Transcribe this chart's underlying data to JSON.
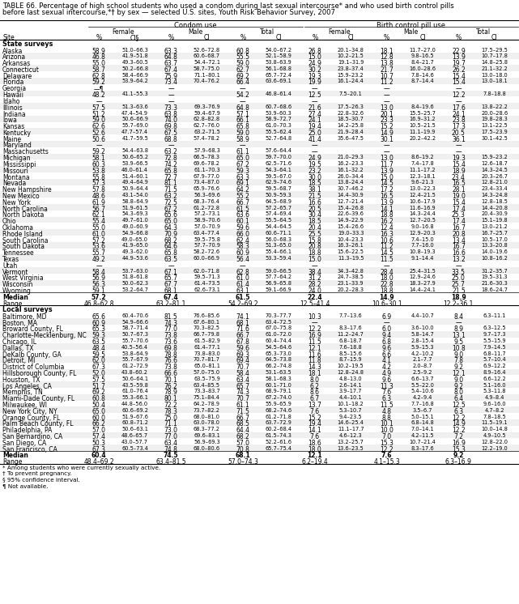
{
  "title_line1": "TABLE 66. Percentage of high school students who used a condom during last sexual intercourse* and who used birth control pills",
  "title_line2": "before last sexual intercourse,*† by sex — selected U.S. sites, Youth Risk Behavior Survey, 2007",
  "col_group1": "Condom use",
  "col_group2": "Birth control pill use",
  "sub_headers": [
    "Female",
    "Male",
    "Total",
    "Female",
    "Male",
    "Total"
  ],
  "col_headers": [
    "%",
    "CI§",
    "%",
    "CI",
    "%",
    "CI",
    "%",
    "CI",
    "%",
    "CI",
    "%",
    "CI"
  ],
  "section1_header": "State surveys",
  "rows_state": [
    [
      "Alaska",
      "58.9",
      "51.0–66.3",
      "63.3",
      "52.6–72.8",
      "60.8",
      "54.0–67.2",
      "26.8",
      "20.1–34.8",
      "18.1",
      "11.7–27.0",
      "22.9",
      "17.5–29.5"
    ],
    [
      "Arizona",
      "46.8",
      "41.9–51.8",
      "64.8",
      "60.6–68.7",
      "55.5",
      "52.1–58.9",
      "15.0",
      "10.2–21.5",
      "12.8",
      "9.8–16.5",
      "13.9",
      "10.7–17.8"
    ],
    [
      "Arkansas",
      "55.0",
      "49.3–60.5",
      "63.7",
      "54.4–72.1",
      "59.0",
      "53.8–63.9",
      "24.9",
      "19.1–31.9",
      "13.8",
      "8.4–21.7",
      "19.7",
      "14.8–25.8"
    ],
    [
      "Connecticut",
      "58.7",
      "50.2–66.8",
      "67.4",
      "58.7–75.0",
      "62.7",
      "56.1–68.8",
      "30.2",
      "23.8–37.4",
      "21.7",
      "16.0–28.6",
      "26.2",
      "21.1–32.2"
    ],
    [
      "Delaware",
      "62.8",
      "58.4–66.9",
      "75.9",
      "71.1–80.1",
      "69.2",
      "65.7–72.4",
      "19.3",
      "15.9–23.2",
      "10.7",
      "7.8–14.6",
      "15.4",
      "13.0–18.0"
    ],
    [
      "Florida",
      "59.2",
      "53.9–64.2",
      "73.4",
      "70.4–76.2",
      "66.4",
      "63.6–69.1",
      "19.9",
      "16.1–24.4",
      "11.2",
      "8.7–14.4",
      "15.4",
      "13.0–18.1"
    ],
    [
      "Georgia",
      "—¶",
      "",
      "—",
      "",
      "—",
      "",
      "—",
      "",
      "—",
      "",
      "—",
      ""
    ],
    [
      "Hawaii",
      "48.2",
      "41.1–55.3",
      "—",
      "",
      "54.2",
      "46.8–61.4",
      "12.5",
      "7.5–20.1",
      "—",
      "",
      "12.2",
      "7.8–18.8"
    ],
    [
      "Idaho",
      "—",
      "",
      "—",
      "",
      "—",
      "",
      "—",
      "",
      "—",
      "",
      "—",
      ""
    ],
    [
      "Illinois",
      "57.5",
      "51.3–63.6",
      "73.3",
      "69.3–76.9",
      "64.8",
      "60.7–68.6",
      "21.6",
      "17.5–26.3",
      "13.0",
      "8.4–19.6",
      "17.6",
      "13.8–22.2"
    ],
    [
      "Indiana",
      "51.2",
      "47.4–54.9",
      "63.8",
      "59.4–67.9",
      "57.1",
      "53.9–60.3",
      "27.4",
      "22.8–32.6",
      "20.1",
      "15.5–25.7",
      "24.1",
      "20.0–28.6"
    ],
    [
      "Iowa",
      "59.0",
      "50.6–66.9",
      "74.0",
      "62.8–82.8",
      "66.1",
      "58.9–72.7",
      "24.1",
      "18.5–30.7",
      "23.3",
      "16.9–31.2",
      "23.8",
      "19.8–28.3"
    ],
    [
      "Kansas",
      "62.6",
      "55.7–69.0",
      "69.8",
      "62.7–76.0",
      "65.8",
      "61.0–70.3",
      "19.4",
      "14.2–25.8",
      "15.2",
      "10.5–21.5",
      "17.3",
      "13.1–22.5"
    ],
    [
      "Kentucky",
      "52.6",
      "47.7–57.4",
      "67.5",
      "63.2–71.5",
      "59.0",
      "55.5–62.4",
      "25.0",
      "21.9–28.4",
      "14.9",
      "11.1–19.9",
      "20.5",
      "17.5–23.9"
    ],
    [
      "Maine",
      "50.6",
      "41.7–59.5",
      "68.8",
      "57.4–78.2",
      "58.9",
      "52.7–64.8",
      "41.4",
      "35.6–47.5",
      "30.1",
      "20.2–42.2",
      "36.1",
      "30.1–42.5"
    ],
    [
      "Maryland",
      "—",
      "",
      "—",
      "",
      "—",
      "",
      "—",
      "",
      "—",
      "",
      "—",
      ""
    ],
    [
      "Massachusetts",
      "59.2",
      "54.4–63.8",
      "63.2",
      "57.9–68.3",
      "61.1",
      "57.6–64.4",
      "—",
      "",
      "—",
      "",
      "—",
      ""
    ],
    [
      "Michigan",
      "58.1",
      "50.6–65.2",
      "72.8",
      "66.5–78.3",
      "65.0",
      "59.7–70.0",
      "24.9",
      "21.0–29.3",
      "13.0",
      "8.6–19.2",
      "19.3",
      "15.9–23.2"
    ],
    [
      "Mississippi",
      "60.3",
      "53.9–66.5",
      "74.2",
      "69.6–78.2",
      "67.2",
      "62.5–71.6",
      "19.5",
      "16.2–23.3",
      "11.7",
      "7.4–17.8",
      "15.4",
      "12.6–18.7"
    ],
    [
      "Missouri",
      "53.8",
      "46.0–61.4",
      "65.8",
      "61.1–70.3",
      "59.3",
      "54.3–64.1",
      "23.2",
      "16.1–32.2",
      "13.9",
      "11.1–17.2",
      "18.9",
      "14.3–24.5"
    ],
    [
      "Montana",
      "55.8",
      "51.4–60.1",
      "72.7",
      "67.9–77.0",
      "63.3",
      "59.5–67.0",
      "30.0",
      "26.0–34.4",
      "15.0",
      "12.3–18.1",
      "23.4",
      "20.3–26.7"
    ],
    [
      "Nevada",
      "57.3",
      "49.4–64.9",
      "81.1",
      "73.4–87.0",
      "69.1",
      "62.9–74.6",
      "18.5",
      "13.8–24.4",
      "14.5",
      "9.6–21.3",
      "16.5",
      "12.8–21.0"
    ],
    [
      "New Hampshire",
      "57.8",
      "50.9–64.4",
      "71.5",
      "65.9–76.6",
      "64.2",
      "59.5–68.7",
      "38.1",
      "30.7–46.2",
      "17.2",
      "13.0–22.3",
      "28.1",
      "23.4–33.4"
    ],
    [
      "New Mexico",
      "48.6",
      "43.1–54.0",
      "63.2",
      "56.3–69.6",
      "55.2",
      "50.9–59.3",
      "21.5",
      "14.4–30.9",
      "16.5",
      "12.4–21.5",
      "19.0",
      "14.3–24.8"
    ],
    [
      "New York",
      "61.9",
      "58.8–64.9",
      "72.5",
      "68.3–76.4",
      "66.7",
      "64.5–68.9",
      "16.6",
      "12.7–21.4",
      "13.9",
      "10.6–17.9",
      "15.4",
      "12.8–18.5"
    ],
    [
      "North Carolina",
      "56.7",
      "51.9–61.5",
      "67.2",
      "61.2–72.8",
      "61.5",
      "57.2–65.7",
      "20.5",
      "15.4–26.8",
      "14.1",
      "11.6–16.9",
      "17.4",
      "14.4–20.8"
    ],
    [
      "North Dakota",
      "62.1",
      "54.3–69.3",
      "65.6",
      "57.2–73.1",
      "63.6",
      "57.4–69.4",
      "30.4",
      "22.6–39.6",
      "18.8",
      "14.3–24.4",
      "25.3",
      "20.4–30.9"
    ],
    [
      "Ohio",
      "55.4",
      "49.7–61.0",
      "65.0",
      "58.9–70.6",
      "60.1",
      "55.5–64.5",
      "18.5",
      "14.9–22.9",
      "16.2",
      "12.7–20.5",
      "17.4",
      "15.1–19.8"
    ],
    [
      "Oklahoma",
      "55.0",
      "49.0–60.9",
      "64.3",
      "57.0–70.9",
      "59.6",
      "54.4–64.5",
      "20.4",
      "15.4–26.6",
      "12.4",
      "9.0–16.8",
      "16.7",
      "13.0–21.2"
    ],
    [
      "Rhode Island",
      "61.0",
      "54.9–66.8",
      "70.9",
      "63.4–77.4",
      "66.0",
      "60.6–71.1",
      "25.5",
      "19.0–33.3",
      "16.3",
      "12.9–20.3",
      "20.8",
      "16.7–25.7"
    ],
    [
      "South Carolina",
      "57.2",
      "49.0–65.0",
      "68.2",
      "59.5–75.8",
      "62.4",
      "56.0–68.3",
      "15.8",
      "10.4–23.3",
      "10.6",
      "7.4–15.0",
      "13.4",
      "10.5–17.0"
    ],
    [
      "South Dakota",
      "53.6",
      "41.9–65.0",
      "64.6",
      "57.7–70.9",
      "58.3",
      "51.3–65.0",
      "20.8",
      "16.3–26.1",
      "11.2",
      "7.7–16.0",
      "16.7",
      "13.3–20.8"
    ],
    [
      "Tennessee",
      "55.7",
      "49.3–62.0",
      "65.8",
      "58.2–72.6",
      "60.9",
      "55.4–66.1",
      "18.8",
      "15.6–22.5",
      "14.5",
      "10.8–19.3",
      "16.6",
      "14.0–19.6"
    ],
    [
      "Texas",
      "49.2",
      "44.9–53.6",
      "63.5",
      "60.0–66.9",
      "56.4",
      "53.3–59.4",
      "15.0",
      "11.3–19.5",
      "11.5",
      "9.1–14.4",
      "13.2",
      "10.8–16.2"
    ],
    [
      "Utah",
      "—",
      "",
      "—",
      "",
      "—",
      "",
      "—",
      "",
      "—",
      "",
      "—",
      ""
    ],
    [
      "Vermont",
      "58.4",
      "53.7–63.0",
      "67.1",
      "62.0–71.8",
      "62.8",
      "59.0–66.5",
      "38.4",
      "34.3–42.8",
      "28.4",
      "25.4–31.5",
      "33.5",
      "31.2–35.7"
    ],
    [
      "West Virginia",
      "56.9",
      "51.8–61.8",
      "65.7",
      "59.5–71.3",
      "61.0",
      "57.7–64.2",
      "31.2",
      "24.7–38.5",
      "18.0",
      "12.9–24.6",
      "25.0",
      "19.5–31.3"
    ],
    [
      "Wisconsin",
      "56.3",
      "50.0–62.3",
      "67.7",
      "61.4–73.5",
      "61.4",
      "56.9–65.8",
      "28.2",
      "23.1–33.9",
      "22.8",
      "18.3–27.9",
      "25.7",
      "21.6–30.3"
    ],
    [
      "Wyoming",
      "59.1",
      "53.2–64.7",
      "68.1",
      "62.6–73.1",
      "63.1",
      "59.1–66.9",
      "24.0",
      "20.2–28.3",
      "18.8",
      "14.4–24.1",
      "21.5",
      "18.6–24.7"
    ]
  ],
  "median_state": [
    "Median",
    "57.2",
    "",
    "67.4",
    "",
    "61.5",
    "",
    "22.4",
    "",
    "14.9",
    "",
    "18.9",
    ""
  ],
  "range_state": [
    "Range",
    "46.8–62.8",
    "",
    "63.2–81.1",
    "",
    "54.2–69.2",
    "",
    "12.5–41.4",
    "",
    "10.6–30.1",
    "",
    "12.2–36.1",
    ""
  ],
  "section2_header": "Local surveys",
  "rows_local": [
    [
      "Baltimore, MD",
      "65.6",
      "60.4–70.6",
      "81.5",
      "76.6–85.6",
      "74.1",
      "70.3–77.7",
      "10.3",
      "7.7–13.6",
      "6.9",
      "4.4–10.7",
      "8.4",
      "6.3–11.1"
    ],
    [
      "Boston, MA",
      "60.9",
      "54.9–66.6",
      "74.3",
      "67.6–80.1",
      "68.1",
      "63.4–72.5",
      "—",
      "",
      "—",
      "",
      "—",
      ""
    ],
    [
      "Broward County, FL",
      "65.3",
      "58.7–71.4",
      "77.0",
      "70.3–82.5",
      "71.6",
      "67.0–75.8",
      "12.2",
      "8.3–17.6",
      "6.0",
      "3.6–10.0",
      "8.9",
      "6.3–12.5"
    ],
    [
      "Charlotte-Mecklenburg, NC",
      "59.3",
      "50.7–67.3",
      "73.8",
      "66.7–79.8",
      "66.7",
      "61.0–72.0",
      "16.9",
      "11.2–24.7",
      "9.4",
      "5.8–14.7",
      "13.1",
      "9.7–17.3"
    ],
    [
      "Chicago, IL",
      "63.5",
      "55.7–70.6",
      "73.6",
      "61.5–82.9",
      "67.8",
      "60.4–74.4",
      "11.5",
      "6.8–18.7",
      "6.8",
      "2.8–15.4",
      "9.5",
      "5.5–15.9"
    ],
    [
      "Dallas, TX",
      "48.4",
      "40.5–56.4",
      "69.8",
      "61.4–77.1",
      "59.6",
      "54.5–64.6",
      "12.1",
      "7.6–18.8",
      "9.6",
      "5.9–15.3",
      "10.8",
      "7.9–14.5"
    ],
    [
      "DeKalb County, GA",
      "59.5",
      "53.8–64.9",
      "78.8",
      "73.8–83.0",
      "69.3",
      "65.3–73.0",
      "11.6",
      "8.5–15.6",
      "6.6",
      "4.2–10.2",
      "9.0",
      "6.8–11.7"
    ],
    [
      "Detroit, MI",
      "62.0",
      "55.7–67.9",
      "76.6",
      "70.7–81.7",
      "69.4",
      "64.5–73.8",
      "11.8",
      "8.7–15.9",
      "4.1",
      "2.1–7.7",
      "7.8",
      "5.7–10.4"
    ],
    [
      "District of Columbia",
      "67.3",
      "61.2–72.9",
      "73.8",
      "65.0–81.1",
      "70.7",
      "66.2–74.8",
      "14.3",
      "10.2–19.5",
      "4.2",
      "2.0–8.7",
      "9.2",
      "6.9–12.2"
    ],
    [
      "Hillsborough County, FL",
      "52.0",
      "43.8–60.2",
      "66.6",
      "57.0–75.0",
      "58.4",
      "53.1–63.5",
      "18.1",
      "12.8–24.8",
      "4.9",
      "2.5–9.2",
      "12.1",
      "8.9–16.4"
    ],
    [
      "Houston, TX",
      "57.5",
      "50.6–64.1",
      "70.1",
      "63.5–75.9",
      "63.4",
      "58.1–68.3",
      "8.0",
      "4.8–13.0",
      "9.6",
      "6.6–13.7",
      "9.0",
      "6.6–12.2"
    ],
    [
      "Los Angeles, CA",
      "51.7",
      "43.5–59.8",
      "76.2",
      "63.4–85.5",
      "65.7",
      "60.1–71.0",
      "6.2",
      "2.6–14.1",
      "11.3",
      "5.5–22.0",
      "9.2",
      "5.1–16.0"
    ],
    [
      "Memphis, TN",
      "69.2",
      "61.0–76.4",
      "78.9",
      "73.3–83.7",
      "74.3",
      "68.9–79.1",
      "8.6",
      "3.9–17.7",
      "7.6",
      "5.4–10.6",
      "8.0",
      "5.3–11.8"
    ],
    [
      "Miami-Dade County, FL",
      "60.8",
      "55.3–66.1",
      "80.1",
      "75.1–84.4",
      "70.7",
      "67.2–74.0",
      "6.7",
      "4.4–10.1",
      "6.3",
      "4.2–9.4",
      "6.4",
      "4.9–8.4"
    ],
    [
      "Milwaukee, WI",
      "50.4",
      "44.8–56.0",
      "72.2",
      "64.2–78.9",
      "61.1",
      "55.9–65.9",
      "13.7",
      "10.1–18.2",
      "11.5",
      "7.7–16.8",
      "12.5",
      "9.6–16.0"
    ],
    [
      "New York City, NY",
      "65.0",
      "60.6–69.2",
      "78.3",
      "73.7–82.2",
      "71.5",
      "68.2–74.6",
      "7.6",
      "5.3–10.7",
      "4.8",
      "3.5–6.7",
      "6.3",
      "4.7–8.2"
    ],
    [
      "Orange County, FL",
      "60.0",
      "51.9–67.6",
      "75.0",
      "68.0–81.0",
      "66.7",
      "61.2–71.8",
      "15.2",
      "9.4–23.5",
      "8.8",
      "5.0–15.1",
      "12.2",
      "7.8–18.5"
    ],
    [
      "Palm Beach County, FL",
      "66.2",
      "60.8–71.2",
      "71.1",
      "63.0–78.0",
      "68.5",
      "63.7–72.9",
      "19.4",
      "14.6–25.4",
      "10.1",
      "6.8–14.8",
      "14.9",
      "11.5–19.1"
    ],
    [
      "Philadelphia, PA",
      "57.0",
      "50.6–63.1",
      "73.0",
      "68.3–77.2",
      "64.4",
      "60.2–68.4",
      "14.1",
      "11.1–17.7",
      "10.0",
      "7.0–14.1",
      "12.2",
      "10.0–14.8"
    ],
    [
      "San Bernardino, CA",
      "57.4",
      "48.6–65.7",
      "77.0",
      "69.6–83.1",
      "68.2",
      "61.5–74.3",
      "7.6",
      "4.6–12.3",
      "7.0",
      "4.2–11.5",
      "7.2",
      "4.9–10.5"
    ],
    [
      "San Diego, CA",
      "50.3",
      "43.0–57.7",
      "63.4",
      "56.9–69.3",
      "57.0",
      "52.2–61.6",
      "18.6",
      "13.2–25.7",
      "15.3",
      "10.7–21.4",
      "16.9",
      "12.8–22.0"
    ],
    [
      "San Francisco, CA",
      "67.3",
      "60.5–73.4",
      "74.8",
      "68.0–80.6",
      "70.8",
      "65.7–75.4",
      "18.0",
      "13.6–23.5",
      "12.2",
      "8.3–17.6",
      "15.3",
      "12.2–19.0"
    ]
  ],
  "median_local": [
    "Median",
    "60.4",
    "",
    "74.5",
    "",
    "68.1",
    "",
    "12.1",
    "",
    "7.6",
    "",
    "9.2",
    ""
  ],
  "range_local": [
    "Range",
    "48.4–69.2",
    "",
    "63.4–81.5",
    "",
    "57.0–74.3",
    "",
    "6.2–19.4",
    "",
    "4.1–15.3",
    "",
    "6.3–16.9",
    ""
  ],
  "footnotes": [
    "* Among students who were currently sexually active.",
    "† To prevent pregnancy.",
    "§ 95% confidence interval.",
    "¶ Not available."
  ],
  "background_color": "#ffffff"
}
